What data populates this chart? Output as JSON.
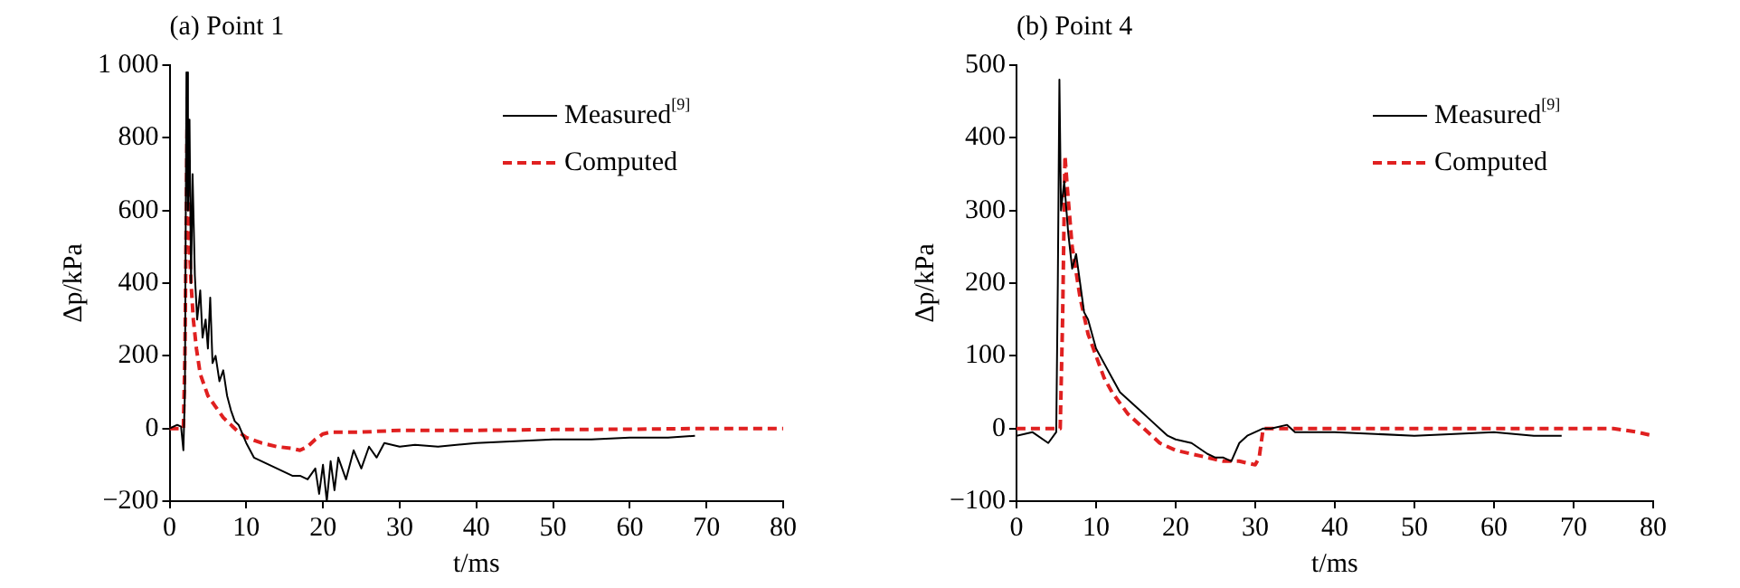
{
  "chart_data": [
    {
      "type": "line",
      "title": "(a) Point 1",
      "xlabel": "t/ms",
      "ylabel": "Δp/kPa",
      "xlim": [
        0,
        80
      ],
      "xticks": [
        0,
        10,
        20,
        30,
        40,
        50,
        60,
        70,
        80
      ],
      "ylim": [
        -200,
        1000
      ],
      "yticks": [
        {
          "value": -200,
          "label": "−200"
        },
        0,
        200,
        400,
        600,
        800,
        {
          "value": 1000,
          "label": "1 000"
        }
      ],
      "grid": false,
      "legend": "top right",
      "marker": "none",
      "series": [
        {
          "name": "Measured$^{[9]}$",
          "color": "#000000",
          "line_style": "solid",
          "x": [
            0,
            1,
            1.5,
            1.8,
            2.0,
            2.2,
            2.4,
            2.6,
            2.8,
            3.0,
            3.3,
            3.6,
            4,
            4.3,
            4.7,
            5,
            5.3,
            5.6,
            6,
            6.5,
            7,
            7.5,
            8,
            8.5,
            9,
            10,
            11,
            12,
            13,
            14,
            15,
            16,
            17,
            18,
            19,
            19.5,
            20,
            20.5,
            21,
            21.5,
            22,
            23,
            24,
            25,
            26,
            27,
            28,
            30,
            32,
            35,
            40,
            45,
            50,
            55,
            60,
            65,
            68.5
          ],
          "values": [
            0,
            10,
            5,
            -60,
            100,
            980,
            600,
            850,
            400,
            700,
            420,
            300,
            380,
            250,
            300,
            220,
            360,
            180,
            200,
            130,
            160,
            90,
            50,
            20,
            10,
            -40,
            -80,
            -90,
            -100,
            -110,
            -120,
            -130,
            -130,
            -140,
            -110,
            -180,
            -100,
            -200,
            -90,
            -170,
            -80,
            -140,
            -60,
            -110,
            -50,
            -80,
            -40,
            -50,
            -45,
            -50,
            -40,
            -35,
            -30,
            -30,
            -25,
            -25,
            -20
          ]
        },
        {
          "name": "Computed",
          "color": "#e02020",
          "line_style": "dashed",
          "x": [
            0,
            1.8,
            2.0,
            2.3,
            2.6,
            2.8,
            3.1,
            3.5,
            4,
            5,
            6,
            7,
            8,
            9,
            10,
            12,
            14,
            16,
            17,
            18,
            19,
            20,
            21,
            25,
            30,
            40,
            50,
            60,
            70,
            80
          ],
          "values": [
            0,
            0,
            200,
            850,
            500,
            400,
            300,
            220,
            150,
            90,
            60,
            30,
            10,
            -10,
            -25,
            -40,
            -50,
            -55,
            -60,
            -50,
            -30,
            -15,
            -10,
            -10,
            -5,
            -5,
            -3,
            -2,
            0,
            0
          ]
        }
      ]
    },
    {
      "type": "line",
      "title": "(b) Point 4",
      "xlabel": "t/ms",
      "ylabel": "Δp/kPa",
      "xlim": [
        0,
        80
      ],
      "xticks": [
        0,
        10,
        20,
        30,
        40,
        50,
        60,
        70,
        80
      ],
      "ylim": [
        -100,
        500
      ],
      "yticks": [
        {
          "value": -100,
          "label": "−100"
        },
        0,
        100,
        200,
        300,
        400,
        500
      ],
      "grid": false,
      "legend": "top right",
      "marker": "none",
      "series": [
        {
          "name": "Measured$^{[9]}$",
          "color": "#000000",
          "line_style": "solid",
          "x": [
            0,
            2,
            4,
            5,
            5.2,
            5.4,
            5.6,
            6,
            6.5,
            7,
            7.5,
            8,
            8.5,
            9,
            10,
            11,
            12,
            13,
            14,
            15,
            16,
            17,
            18,
            19,
            20,
            22,
            24,
            25,
            26,
            27,
            28,
            29,
            30,
            31,
            32,
            34,
            35,
            40,
            50,
            60,
            65,
            68.5
          ],
          "values": [
            -10,
            -5,
            -20,
            -5,
            200,
            480,
            300,
            340,
            270,
            220,
            240,
            200,
            160,
            150,
            110,
            90,
            70,
            50,
            40,
            30,
            20,
            10,
            0,
            -10,
            -15,
            -20,
            -35,
            -40,
            -40,
            -45,
            -20,
            -10,
            -5,
            0,
            0,
            5,
            -5,
            -5,
            -10,
            -5,
            -10,
            -10
          ]
        },
        {
          "name": "Computed",
          "color": "#e02020",
          "line_style": "dashed",
          "x": [
            0,
            5.5,
            5.8,
            6.1,
            6.4,
            7,
            8,
            9,
            10,
            11,
            12,
            14,
            16,
            18,
            20,
            22,
            24,
            26,
            28,
            30,
            30.5,
            31,
            40,
            60,
            70,
            75,
            78,
            80
          ],
          "values": [
            0,
            0,
            150,
            375,
            330,
            250,
            180,
            130,
            100,
            70,
            50,
            20,
            0,
            -20,
            -30,
            -35,
            -40,
            -45,
            -45,
            -50,
            -40,
            0,
            0,
            0,
            0,
            0,
            -5,
            -10
          ]
        }
      ]
    }
  ]
}
